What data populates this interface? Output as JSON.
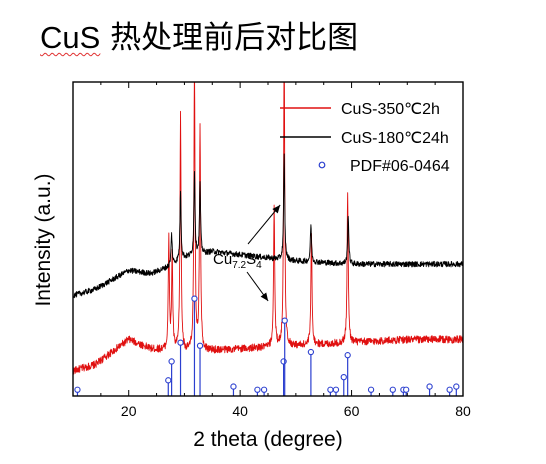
{
  "title": {
    "formula": "CuS",
    "rest": " 热处理前后对比图"
  },
  "chart_data": {
    "type": "line",
    "xlabel": "2 theta (degree)",
    "ylabel": "Intensity (a.u.)",
    "xlim": [
      10,
      80
    ],
    "xticks": [
      "20",
      "40",
      "60",
      "80"
    ],
    "yticks_shown": false,
    "legend_position": "top-right",
    "series": [
      {
        "name": "CuS-350℃2h",
        "color": "#e01010",
        "baseline_profile": [
          [
            10,
            0.08
          ],
          [
            14,
            0.1
          ],
          [
            20,
            0.18
          ],
          [
            24,
            0.15
          ],
          [
            30,
            0.14
          ],
          [
            40,
            0.15
          ],
          [
            50,
            0.16
          ],
          [
            60,
            0.17
          ],
          [
            70,
            0.18
          ],
          [
            80,
            0.18
          ]
        ],
        "peaks": [
          {
            "x": 27.2,
            "h": 0.35
          },
          {
            "x": 27.8,
            "h": 0.3
          },
          {
            "x": 29.3,
            "h": 0.75
          },
          {
            "x": 31.8,
            "h": 0.9
          },
          {
            "x": 32.8,
            "h": 0.72
          },
          {
            "x": 46.1,
            "h": 0.45
          },
          {
            "x": 47.9,
            "h": 0.95
          },
          {
            "x": 52.8,
            "h": 0.35
          },
          {
            "x": 59.3,
            "h": 0.48
          }
        ]
      },
      {
        "name": "CuS-180℃24h",
        "color": "#000000",
        "baseline_profile": [
          [
            10,
            0.32
          ],
          [
            14,
            0.34
          ],
          [
            20,
            0.4
          ],
          [
            24,
            0.39
          ],
          [
            27,
            0.41
          ],
          [
            30,
            0.44
          ],
          [
            35,
            0.46
          ],
          [
            40,
            0.45
          ],
          [
            50,
            0.43
          ],
          [
            60,
            0.42
          ],
          [
            70,
            0.42
          ],
          [
            80,
            0.42
          ]
        ],
        "peaks": [
          {
            "x": 27.7,
            "h": 0.1
          },
          {
            "x": 29.3,
            "h": 0.22
          },
          {
            "x": 31.8,
            "h": 0.27
          },
          {
            "x": 32.8,
            "h": 0.22
          },
          {
            "x": 47.9,
            "h": 0.33
          },
          {
            "x": 52.7,
            "h": 0.12
          },
          {
            "x": 59.4,
            "h": 0.16
          }
        ]
      },
      {
        "name": "PDF#06-0464",
        "color": "#2b3fcf",
        "sticks": [
          {
            "x": 10.8,
            "h": 0.02
          },
          {
            "x": 27.1,
            "h": 0.05
          },
          {
            "x": 27.7,
            "h": 0.11
          },
          {
            "x": 29.3,
            "h": 0.17
          },
          {
            "x": 31.8,
            "h": 0.31
          },
          {
            "x": 32.8,
            "h": 0.16
          },
          {
            "x": 38.8,
            "h": 0.03
          },
          {
            "x": 43.1,
            "h": 0.02
          },
          {
            "x": 44.3,
            "h": 0.02
          },
          {
            "x": 47.8,
            "h": 0.11
          },
          {
            "x": 48.0,
            "h": 0.24
          },
          {
            "x": 52.7,
            "h": 0.14
          },
          {
            "x": 56.2,
            "h": 0.02
          },
          {
            "x": 57.2,
            "h": 0.02
          },
          {
            "x": 58.6,
            "h": 0.06
          },
          {
            "x": 59.3,
            "h": 0.13
          },
          {
            "x": 63.5,
            "h": 0.02
          },
          {
            "x": 67.4,
            "h": 0.02
          },
          {
            "x": 69.3,
            "h": 0.02
          },
          {
            "x": 69.8,
            "h": 0.02
          },
          {
            "x": 74.0,
            "h": 0.03
          },
          {
            "x": 77.6,
            "h": 0.02
          },
          {
            "x": 78.8,
            "h": 0.03
          }
        ]
      }
    ],
    "annotation": {
      "text_base": "Cu",
      "sub1": "7.2",
      "mid": "S",
      "sub2": "4",
      "arrows_to_x": [
        47.9,
        46.1
      ]
    }
  }
}
